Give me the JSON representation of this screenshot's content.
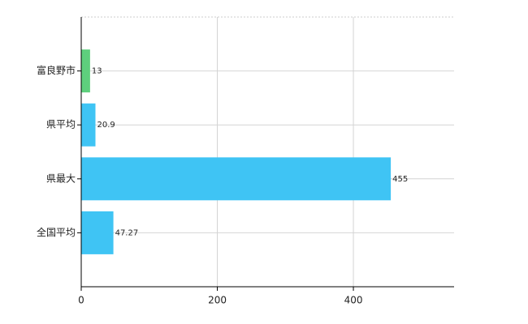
{
  "chart_data": {
    "type": "hbar",
    "categories": [
      "富良野市",
      "県平均",
      "県最大",
      "全国平均"
    ],
    "values": [
      13,
      20.9,
      455,
      47.27
    ],
    "colors": [
      "#5ecf7d",
      "#3fc4f4",
      "#3fc4f4",
      "#3fc4f4"
    ],
    "xlim": [
      0,
      548
    ],
    "xticks": [
      0,
      200,
      400
    ],
    "grid": true
  }
}
